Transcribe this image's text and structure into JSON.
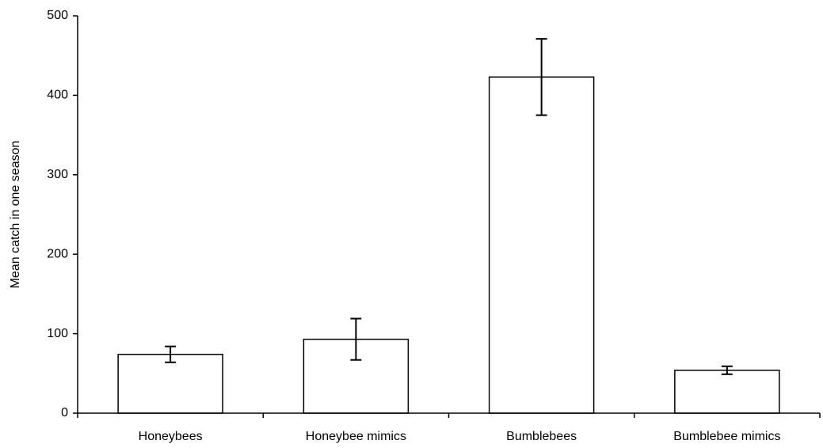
{
  "chart_data": {
    "type": "bar",
    "ylabel": "Mean catch in one season",
    "categories": [
      "Honeybees",
      "Honeybee mimics",
      "Bumblebees",
      "Bumblebee mimics"
    ],
    "values": [
      74,
      93,
      423,
      54
    ],
    "errors": [
      10,
      26,
      48,
      5
    ],
    "color": "#ffffff",
    "ylim": [
      0,
      500
    ],
    "yticks": [
      0,
      100,
      200,
      300,
      400,
      500
    ],
    "grid": false
  }
}
